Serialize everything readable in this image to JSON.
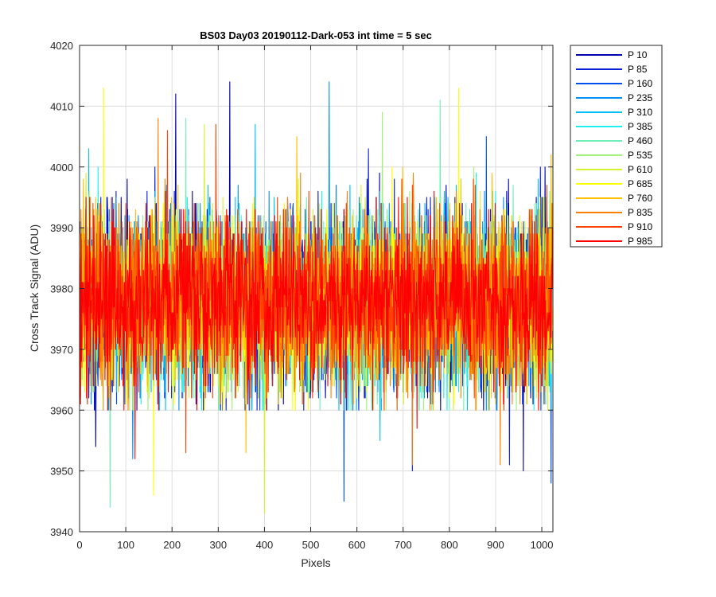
{
  "chart_data": {
    "type": "line",
    "title": "BS03 Day03 20190112-Dark-053 int time = 5 sec",
    "xlabel": "Pixels",
    "ylabel": "Cross Track Signal (ADU)",
    "xlim": [
      0,
      1024
    ],
    "ylim": [
      3940,
      4020
    ],
    "xticks": [
      0,
      100,
      200,
      300,
      400,
      500,
      600,
      700,
      800,
      900,
      1000
    ],
    "yticks": [
      3940,
      3950,
      3960,
      3970,
      3980,
      3990,
      4000,
      4010,
      4020
    ],
    "grid": true,
    "legend_position": "outside-right",
    "num_points": 1024,
    "series": [
      {
        "name": "P 10",
        "color": "#0000b0",
        "mean": 3978,
        "std": 7.2,
        "seed": 11,
        "extremes": [
          [
            325,
            4014
          ],
          [
            208,
            4012
          ],
          [
            960,
            3950
          ],
          [
            35,
            3954
          ]
        ]
      },
      {
        "name": "P 85",
        "color": "#0a1fd8",
        "mean": 3978,
        "std": 7.2,
        "seed": 23,
        "extremes": [
          [
            930,
            3951
          ],
          [
            720,
            3950
          ],
          [
            625,
            4003
          ]
        ]
      },
      {
        "name": "P 160",
        "color": "#0050f0",
        "mean": 3978,
        "std": 7.1,
        "seed": 37,
        "extremes": [
          [
            572,
            3945
          ],
          [
            880,
            4005
          ],
          [
            1020,
            3948
          ]
        ]
      },
      {
        "name": "P 235",
        "color": "#0090f5",
        "mean": 3978,
        "std": 7.1,
        "seed": 41,
        "extremes": [
          [
            540,
            4014
          ],
          [
            115,
            3952
          ],
          [
            760,
            3961
          ]
        ]
      },
      {
        "name": "P 310",
        "color": "#00bff8",
        "mean": 3978,
        "std": 7.0,
        "seed": 53,
        "extremes": [
          [
            20,
            4003
          ],
          [
            380,
            4007
          ],
          [
            650,
            3955
          ]
        ]
      },
      {
        "name": "P 385",
        "color": "#1ef0ee",
        "mean": 3978,
        "std": 7.0,
        "seed": 61,
        "extremes": [
          [
            40,
            4000
          ],
          [
            900,
            3996
          ]
        ]
      },
      {
        "name": "P 460",
        "color": "#70f0b8",
        "mean": 3978,
        "std": 7.0,
        "seed": 71,
        "extremes": [
          [
            66,
            3944
          ],
          [
            230,
            4008
          ],
          [
            780,
            4011
          ]
        ]
      },
      {
        "name": "P 535",
        "color": "#a0f07a",
        "mean": 3978,
        "std": 7.0,
        "seed": 83,
        "extremes": [
          [
            655,
            4009
          ],
          [
            330,
            3960
          ]
        ]
      },
      {
        "name": "P 610",
        "color": "#d4f230",
        "mean": 3978,
        "std": 7.0,
        "seed": 97,
        "extremes": [
          [
            400,
            3943
          ],
          [
            270,
            4007
          ]
        ]
      },
      {
        "name": "P 685",
        "color": "#ffff00",
        "mean": 3978,
        "std": 7.0,
        "seed": 101,
        "extremes": [
          [
            52,
            4013
          ],
          [
            820,
            4013
          ],
          [
            160,
            3946
          ]
        ]
      },
      {
        "name": "P 760",
        "color": "#ffc000",
        "mean": 3978,
        "std": 6.9,
        "seed": 113,
        "extremes": [
          [
            470,
            4005
          ],
          [
            1020,
            4002
          ],
          [
            360,
            3953
          ]
        ]
      },
      {
        "name": "P 835",
        "color": "#ff8000",
        "mean": 3978,
        "std": 6.9,
        "seed": 127,
        "extremes": [
          [
            170,
            4008
          ],
          [
            910,
            3951
          ],
          [
            720,
            3951
          ]
        ]
      },
      {
        "name": "P 910",
        "color": "#ff4000",
        "mean": 3978,
        "std": 6.8,
        "seed": 131,
        "extremes": [
          [
            190,
            4006
          ],
          [
            295,
            4007
          ],
          [
            230,
            3953
          ]
        ]
      },
      {
        "name": "P 985",
        "color": "#ff0000",
        "mean": 3978,
        "std": 6.6,
        "seed": 139,
        "extremes": [
          [
            120,
            3952
          ],
          [
            730,
            3957
          ]
        ]
      }
    ]
  }
}
